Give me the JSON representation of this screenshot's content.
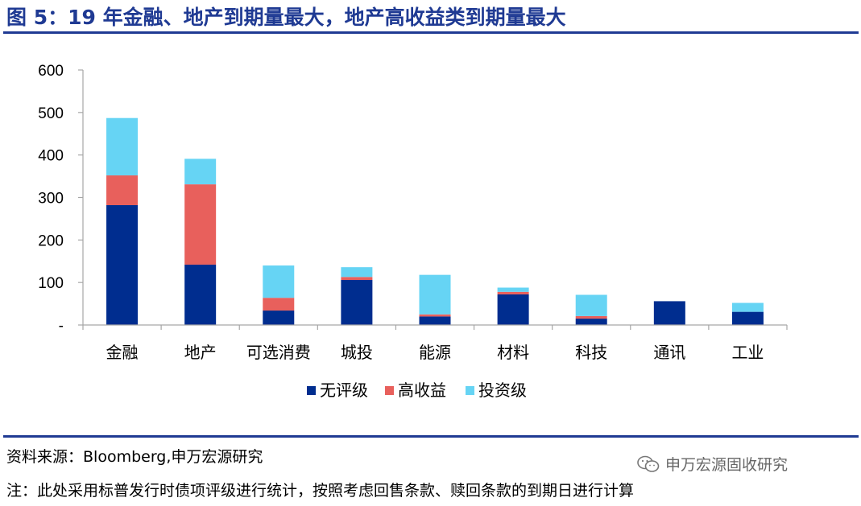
{
  "title": "图 5：19 年金融、地产到期量最大，地产高收益类到期量最大",
  "source": "资料来源：Bloomberg,申万宏源研究",
  "note": "注：此处采用标普发行时债项评级进行统计，按照考虑回售条款、赎回条款的到期日进行计算",
  "watermark": "申万宏源固收研究",
  "watermark_icon": "wechat-icon",
  "colors": {
    "title": "#1f3a93",
    "rule": "#1f3a93",
    "axis": "#a6a6a6"
  },
  "chart_data": {
    "type": "bar",
    "stacked": true,
    "categories": [
      "金融",
      "地产",
      "可选消费",
      "城投",
      "能源",
      "材料",
      "科技",
      "通讯",
      "工业"
    ],
    "series": [
      {
        "name": "无评级",
        "color": "#002d8f",
        "values": [
          282,
          142,
          34,
          106,
          20,
          72,
          15,
          56,
          31
        ]
      },
      {
        "name": "高收益",
        "color": "#e8605c",
        "values": [
          70,
          189,
          30,
          7,
          5,
          6,
          6,
          0,
          0
        ]
      },
      {
        "name": "投资级",
        "color": "#66d4f4",
        "values": [
          135,
          60,
          76,
          23,
          93,
          10,
          50,
          0,
          21
        ]
      }
    ],
    "y_ticks": [
      "-",
      "100",
      "200",
      "300",
      "400",
      "500",
      "600"
    ],
    "ylim": [
      0,
      600
    ],
    "grid": false,
    "legend_position": "bottom"
  }
}
